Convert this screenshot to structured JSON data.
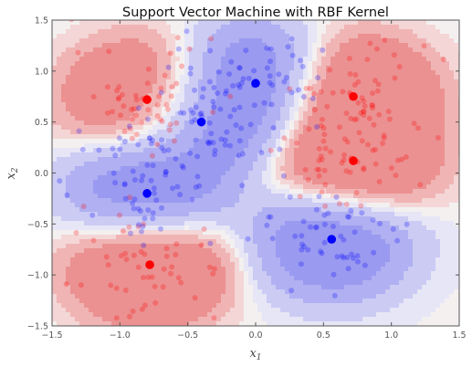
{
  "chart_data": {
    "type": "scatter",
    "title": "Support Vector Machine with RBF Kernel",
    "xlabel": "x",
    "xlabel_sub": "1",
    "ylabel": "x",
    "ylabel_sub": "2",
    "xlim": [
      -1.5,
      1.5
    ],
    "ylim": [
      -1.5,
      1.5
    ],
    "xticks": [
      -1.5,
      -1.0,
      -0.5,
      0.0,
      0.5,
      1.0,
      1.5
    ],
    "yticks": [
      -1.5,
      -1.0,
      -0.5,
      0.0,
      0.5,
      1.0,
      1.5
    ],
    "xtick_labels": [
      "−1.5",
      "−1.0",
      "−0.5",
      "0.0",
      "0.5",
      "1.0",
      "1.5"
    ],
    "ytick_labels": [
      "−1.5",
      "−1.0",
      "−0.5",
      "0.0",
      "0.5",
      "1.0",
      "1.5"
    ],
    "grid": false,
    "colors": {
      "red_class": "#ff0000",
      "blue_class": "#0000ff"
    },
    "background": "decision-function contour regions (red and blue)",
    "centers": [
      {
        "class": "red",
        "x": -0.8,
        "y": 0.72
      },
      {
        "class": "red",
        "x": 0.72,
        "y": 0.75
      },
      {
        "class": "red",
        "x": 0.72,
        "y": 0.12
      },
      {
        "class": "red",
        "x": -0.78,
        "y": -0.9
      },
      {
        "class": "blue",
        "x": 0.0,
        "y": 0.88
      },
      {
        "class": "blue",
        "x": -0.4,
        "y": 0.5
      },
      {
        "class": "blue",
        "x": -0.8,
        "y": -0.2
      },
      {
        "class": "blue",
        "x": 0.56,
        "y": -0.65
      }
    ],
    "sample_points": {
      "spread": 0.27,
      "per_center": 55,
      "opacity": 0.25
    }
  }
}
